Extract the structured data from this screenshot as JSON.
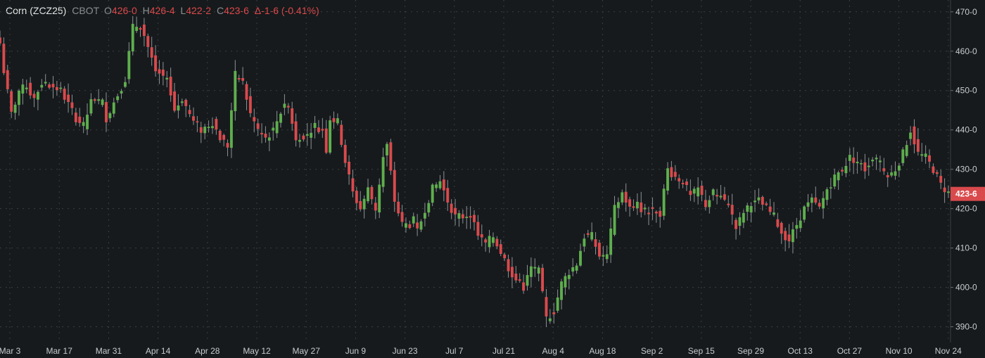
{
  "header": {
    "symbol": "Corn (ZCZ25)",
    "exchange": "CBOT",
    "open_label": "O",
    "open": "426-0",
    "high_label": "H",
    "high": "426-4",
    "low_label": "L",
    "low": "422-2",
    "close_label": "C",
    "close": "423-6",
    "delta": "Δ-1-6 (-0.41%)"
  },
  "colors": {
    "background": "#161a1c",
    "up": "#5fae4e",
    "down": "#d94a4d",
    "grid": "#3a3f43",
    "last_price": "#d94a4d"
  },
  "chart_data": {
    "type": "candlestick",
    "ylim": [
      386,
      473
    ],
    "y_ticks": [
      390,
      400,
      410,
      420,
      430,
      440,
      450,
      460,
      470
    ],
    "y_tick_labels": [
      "390-0",
      "400-0",
      "410-0",
      "420-0",
      "430-0",
      "440-0",
      "450-0",
      "460-0",
      "470-0"
    ],
    "x_ticks": [
      "Mar 3",
      "Mar 17",
      "Mar 31",
      "Apr 14",
      "Apr 28",
      "May 12",
      "May 27",
      "Jun 9",
      "Jun 23",
      "Jul 7",
      "Jul 21",
      "Aug 4",
      "Aug 18",
      "Sep 2",
      "Sep 15",
      "Sep 29",
      "Oct 13",
      "Oct 27",
      "Nov 10",
      "Nov 24"
    ],
    "last_price": 423.75,
    "last_price_label": "423-6",
    "grid": true,
    "anchors": [
      [
        0,
        462
      ],
      [
        1,
        455
      ],
      [
        3,
        444
      ],
      [
        5,
        450
      ],
      [
        7,
        451
      ],
      [
        9,
        448
      ],
      [
        11,
        452
      ],
      [
        14,
        451
      ],
      [
        16,
        450
      ],
      [
        20,
        443
      ],
      [
        22,
        441
      ],
      [
        24,
        447
      ],
      [
        27,
        447
      ],
      [
        28,
        443
      ],
      [
        31,
        449
      ],
      [
        33,
        453
      ],
      [
        35,
        466
      ],
      [
        37,
        467
      ],
      [
        39,
        461
      ],
      [
        41,
        455
      ],
      [
        44,
        453
      ],
      [
        46,
        445
      ],
      [
        48,
        448
      ],
      [
        51,
        442
      ],
      [
        53,
        440
      ],
      [
        56,
        442
      ],
      [
        58,
        438
      ],
      [
        60,
        436
      ],
      [
        62,
        454
      ],
      [
        64,
        452
      ],
      [
        66,
        444
      ],
      [
        68,
        440
      ],
      [
        70,
        438
      ],
      [
        72,
        440
      ],
      [
        75,
        447
      ],
      [
        76,
        446
      ],
      [
        78,
        438
      ],
      [
        81,
        439
      ],
      [
        83,
        441
      ],
      [
        85,
        440
      ],
      [
        86,
        435
      ],
      [
        87,
        443
      ],
      [
        89,
        442
      ],
      [
        91,
        432
      ],
      [
        93,
        424
      ],
      [
        95,
        420
      ],
      [
        97,
        425
      ],
      [
        99,
        420
      ],
      [
        101,
        433
      ],
      [
        102,
        436
      ],
      [
        104,
        422
      ],
      [
        106,
        416
      ],
      [
        108,
        416
      ],
      [
        109,
        417
      ],
      [
        110,
        414
      ],
      [
        112,
        420
      ],
      [
        114,
        425
      ],
      [
        116,
        427
      ],
      [
        118,
        422
      ],
      [
        120,
        418
      ],
      [
        122,
        418
      ],
      [
        124,
        419
      ],
      [
        126,
        413
      ],
      [
        128,
        411
      ],
      [
        130,
        413
      ],
      [
        132,
        409
      ],
      [
        134,
        405
      ],
      [
        136,
        402
      ],
      [
        138,
        400
      ],
      [
        140,
        405
      ],
      [
        142,
        404
      ],
      [
        144,
        392
      ],
      [
        146,
        394
      ],
      [
        148,
        401
      ],
      [
        150,
        404
      ],
      [
        152,
        406
      ],
      [
        154,
        413
      ],
      [
        156,
        413
      ],
      [
        158,
        408
      ],
      [
        160,
        408
      ],
      [
        162,
        420
      ],
      [
        164,
        424
      ],
      [
        166,
        420
      ],
      [
        168,
        421
      ],
      [
        170,
        419
      ],
      [
        172,
        420
      ],
      [
        174,
        419
      ],
      [
        176,
        430
      ],
      [
        178,
        428
      ],
      [
        180,
        427
      ],
      [
        182,
        423
      ],
      [
        184,
        425
      ],
      [
        186,
        421
      ],
      [
        188,
        424
      ],
      [
        190,
        423
      ],
      [
        192,
        421
      ],
      [
        194,
        415
      ],
      [
        196,
        419
      ],
      [
        198,
        421
      ],
      [
        200,
        422
      ],
      [
        202,
        420
      ],
      [
        204,
        418
      ],
      [
        206,
        414
      ],
      [
        208,
        412
      ],
      [
        210,
        416
      ],
      [
        212,
        420
      ],
      [
        214,
        422
      ],
      [
        216,
        420
      ],
      [
        218,
        425
      ],
      [
        220,
        428
      ],
      [
        222,
        430
      ],
      [
        224,
        433
      ],
      [
        226,
        432
      ],
      [
        228,
        430
      ],
      [
        230,
        433
      ],
      [
        232,
        431
      ],
      [
        234,
        428
      ],
      [
        236,
        430
      ],
      [
        238,
        434
      ],
      [
        240,
        440
      ],
      [
        242,
        434
      ],
      [
        244,
        433
      ],
      [
        246,
        430
      ],
      [
        248,
        426
      ],
      [
        250,
        424
      ]
    ]
  }
}
